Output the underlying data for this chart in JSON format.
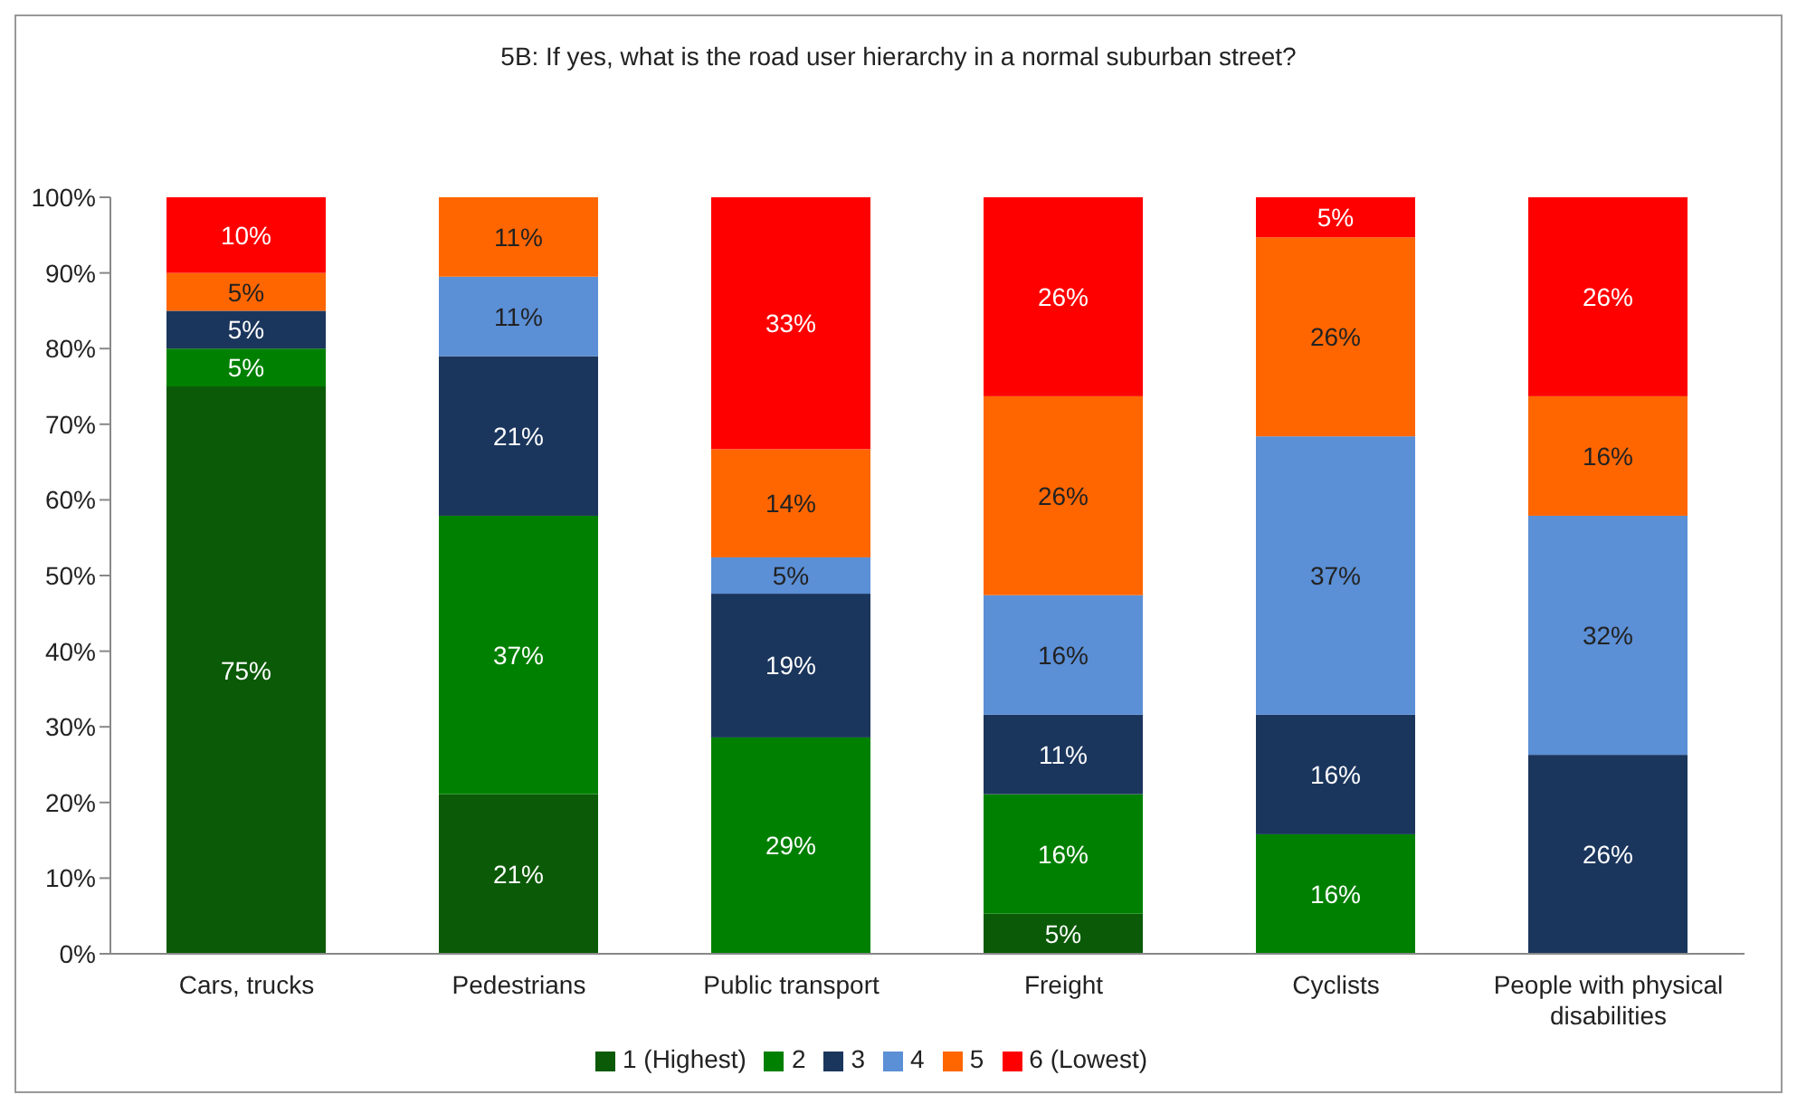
{
  "chart_data": {
    "type": "bar",
    "stacked": true,
    "title": "5B: If yes, what is the road user hierarchy in a normal suburban street?",
    "categories": [
      "Cars, trucks",
      "Pedestrians",
      "Public transport",
      "Freight",
      "Cyclists",
      "People with physical disabilities"
    ],
    "series": [
      {
        "name": "1 (Highest)",
        "color": "#0b5a07",
        "values": [
          75,
          21.1,
          null,
          5.3,
          null,
          null
        ],
        "value_labels": [
          "75%",
          "21%",
          null,
          "5%",
          null,
          null
        ]
      },
      {
        "name": "2",
        "color": "#008000",
        "values": [
          5,
          36.8,
          28.6,
          15.8,
          15.8,
          null
        ],
        "value_labels": [
          "5%",
          "37%",
          "29%",
          "16%",
          "16%",
          null
        ]
      },
      {
        "name": "3",
        "color": "#1b365d",
        "values": [
          5,
          21.1,
          19.0,
          10.5,
          15.8,
          26.3
        ],
        "value_labels": [
          "5%",
          "21%",
          "19%",
          "11%",
          "16%",
          "26%"
        ]
      },
      {
        "name": "4",
        "color": "#5b8fd6",
        "values": [
          null,
          10.5,
          4.8,
          15.8,
          36.8,
          31.6
        ],
        "value_labels": [
          null,
          "11%",
          "5%",
          "16%",
          "37%",
          "32%"
        ]
      },
      {
        "name": "5",
        "color": "#ff6600",
        "values": [
          5,
          10.5,
          14.3,
          26.3,
          26.3,
          15.8
        ],
        "value_labels": [
          "5%",
          "11%",
          "14%",
          "26%",
          "26%",
          "16%"
        ]
      },
      {
        "name": "6 (Lowest)",
        "color": "#ff0000",
        "values": [
          10,
          null,
          33.3,
          26.3,
          5.3,
          26.3
        ],
        "value_labels": [
          "10%",
          null,
          "33%",
          "26%",
          "5%",
          "26%"
        ]
      }
    ],
    "ylim": [
      0,
      100
    ],
    "yticks": [
      {
        "value": 0,
        "label": "0%"
      },
      {
        "value": 10,
        "label": "10%"
      },
      {
        "value": 20,
        "label": "20%"
      },
      {
        "value": 30,
        "label": "30%"
      },
      {
        "value": 40,
        "label": "40%"
      },
      {
        "value": 50,
        "label": "50%"
      },
      {
        "value": 60,
        "label": "60%"
      },
      {
        "value": 70,
        "label": "70%"
      },
      {
        "value": 80,
        "label": "80%"
      },
      {
        "value": 90,
        "label": "90%"
      },
      {
        "value": 100,
        "label": "100%"
      }
    ],
    "grid": false,
    "legend": "bottom"
  }
}
